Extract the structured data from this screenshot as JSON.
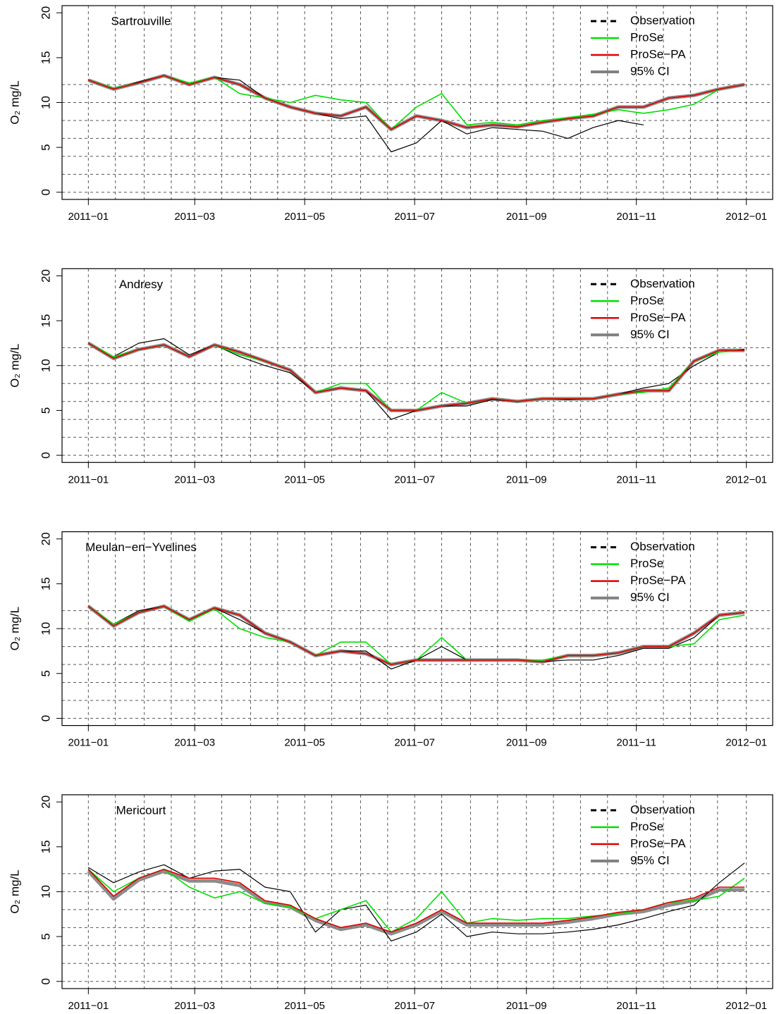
{
  "chart_data": [
    {
      "type": "line",
      "annotation": "Sartrouville",
      "y_label": "O₂ mg/L",
      "x": [
        0,
        14,
        28,
        42,
        56,
        70,
        84,
        98,
        112,
        126,
        140,
        154,
        168,
        182,
        196,
        210,
        224,
        238,
        252,
        266,
        280,
        294,
        308,
        322,
        336,
        350,
        364
      ],
      "xlim": [
        -14.6,
        379.6
      ],
      "xticks": [
        {
          "value": 0,
          "label": "2011−01"
        },
        {
          "value": 59,
          "label": "2011−03"
        },
        {
          "value": 120,
          "label": "2011−05"
        },
        {
          "value": 181,
          "label": "2011−07"
        },
        {
          "value": 243,
          "label": "2011−09"
        },
        {
          "value": 304,
          "label": "2011−11"
        },
        {
          "value": 365,
          "label": "2012−01"
        }
      ],
      "xgrid": [
        0,
        15,
        31,
        46,
        59,
        74,
        90,
        105,
        120,
        135,
        151,
        166,
        181,
        196,
        212,
        227,
        243,
        258,
        273,
        288,
        304,
        319,
        334,
        349,
        365
      ],
      "ylim": [
        -0.8,
        20.8
      ],
      "yticks": [
        0,
        5,
        10,
        15,
        20
      ],
      "ygrid": [
        0,
        2,
        4,
        6,
        8,
        10,
        12
      ],
      "legend": "top right",
      "series": [
        {
          "name": "Observation",
          "color": "#000000",
          "values": [
            12.5,
            11.5,
            12.3,
            13.0,
            12.0,
            12.8,
            12.5,
            10.5,
            9.5,
            8.8,
            8.2,
            8.5,
            4.5,
            5.5,
            8.0,
            6.5,
            7.2,
            7.0,
            6.8,
            6.0,
            7.2,
            8.0,
            7.5,
            null,
            null,
            null,
            null
          ]
        },
        {
          "name": "ProSe",
          "color": "#00e000",
          "values": [
            12.5,
            11.6,
            12.2,
            13.0,
            12.2,
            12.8,
            11.0,
            10.5,
            10.0,
            10.8,
            10.3,
            10.0,
            7.0,
            9.5,
            11.0,
            7.5,
            7.8,
            7.5,
            8.0,
            8.3,
            8.7,
            9.2,
            8.8,
            9.2,
            9.8,
            11.5,
            12.0
          ]
        },
        {
          "name": "ProSe−PA",
          "color": "#e00000",
          "values": [
            12.5,
            11.5,
            12.2,
            13.0,
            12.0,
            12.8,
            12.0,
            10.5,
            9.5,
            8.8,
            8.5,
            9.5,
            7.0,
            8.5,
            8.0,
            7.2,
            7.5,
            7.3,
            7.8,
            8.2,
            8.5,
            9.5,
            9.5,
            10.5,
            10.8,
            11.5,
            12.0
          ]
        },
        {
          "name": "95% CI",
          "color": "#808080",
          "values": [
            12.5,
            11.5,
            12.2,
            13.0,
            12.0,
            12.8,
            12.0,
            10.5,
            9.5,
            8.8,
            8.5,
            9.5,
            7.0,
            8.5,
            8.0,
            7.2,
            7.5,
            7.3,
            7.8,
            8.2,
            8.5,
            9.5,
            9.5,
            10.5,
            10.8,
            11.5,
            12.0
          ]
        }
      ]
    },
    {
      "type": "line",
      "annotation": "Andresy",
      "y_label": "O₂ mg/L",
      "x": [
        0,
        14,
        28,
        42,
        56,
        70,
        84,
        98,
        112,
        126,
        140,
        154,
        168,
        182,
        196,
        210,
        224,
        238,
        252,
        266,
        280,
        294,
        308,
        322,
        336,
        350,
        364
      ],
      "xlim": [
        -14.6,
        379.6
      ],
      "xticks": [
        {
          "value": 0,
          "label": "2011−01"
        },
        {
          "value": 59,
          "label": "2011−03"
        },
        {
          "value": 120,
          "label": "2011−05"
        },
        {
          "value": 181,
          "label": "2011−07"
        },
        {
          "value": 243,
          "label": "2011−09"
        },
        {
          "value": 304,
          "label": "2011−11"
        },
        {
          "value": 365,
          "label": "2012−01"
        }
      ],
      "xgrid": [
        0,
        15,
        31,
        46,
        59,
        74,
        90,
        105,
        120,
        135,
        151,
        166,
        181,
        196,
        212,
        227,
        243,
        258,
        273,
        288,
        304,
        319,
        334,
        349,
        365
      ],
      "ylim": [
        -0.8,
        20.8
      ],
      "yticks": [
        0,
        5,
        10,
        15,
        20
      ],
      "ygrid": [
        0,
        2,
        4,
        6,
        8,
        10,
        12
      ],
      "legend": "top right",
      "series": [
        {
          "name": "Observation",
          "color": "#000000",
          "values": [
            12.5,
            11,
            12.5,
            13,
            11.2,
            12.3,
            11,
            10,
            9.2,
            7,
            7.5,
            7.2,
            4,
            5,
            5.5,
            5.5,
            6.2,
            6,
            6.3,
            6.2,
            6.3,
            6.8,
            7.5,
            8,
            10,
            11.5,
            11.8
          ]
        },
        {
          "name": "ProSe",
          "color": "#00e000",
          "values": [
            12.5,
            11,
            11.8,
            12.3,
            11,
            12.3,
            11.2,
            10.5,
            9.5,
            7,
            8,
            8,
            5,
            5,
            7,
            5.8,
            6.3,
            6,
            6.3,
            6.3,
            6.3,
            6.8,
            7,
            7.5,
            10.5,
            11.5,
            11.7
          ]
        },
        {
          "name": "ProSe−PA",
          "color": "#e00000",
          "values": [
            12.5,
            10.8,
            11.8,
            12.3,
            11,
            12.3,
            11.5,
            10.5,
            9.5,
            7,
            7.5,
            7.2,
            5,
            5,
            5.5,
            5.8,
            6.3,
            6,
            6.3,
            6.3,
            6.3,
            6.8,
            7.2,
            7.2,
            10.5,
            11.7,
            11.7
          ]
        },
        {
          "name": "95% CI",
          "color": "#808080",
          "values": [
            12.5,
            10.8,
            11.8,
            12.3,
            11,
            12.3,
            11.5,
            10.5,
            9.5,
            7,
            7.5,
            7.2,
            5,
            5,
            5.5,
            5.8,
            6.3,
            6,
            6.3,
            6.3,
            6.3,
            6.8,
            7.2,
            7.2,
            10.5,
            11.7,
            11.7
          ]
        }
      ]
    },
    {
      "type": "line",
      "annotation": "Meulan−en−Yvelines",
      "y_label": "O₂ mg/L",
      "x": [
        0,
        14,
        28,
        42,
        56,
        70,
        84,
        98,
        112,
        126,
        140,
        154,
        168,
        182,
        196,
        210,
        224,
        238,
        252,
        266,
        280,
        294,
        308,
        322,
        336,
        350,
        364
      ],
      "xlim": [
        -14.6,
        379.6
      ],
      "xticks": [
        {
          "value": 0,
          "label": "2011−01"
        },
        {
          "value": 59,
          "label": "2011−03"
        },
        {
          "value": 120,
          "label": "2011−05"
        },
        {
          "value": 181,
          "label": "2011−07"
        },
        {
          "value": 243,
          "label": "2011−09"
        },
        {
          "value": 304,
          "label": "2011−11"
        },
        {
          "value": 365,
          "label": "2012−01"
        }
      ],
      "xgrid": [
        0,
        15,
        31,
        46,
        59,
        74,
        90,
        105,
        120,
        135,
        151,
        166,
        181,
        196,
        212,
        227,
        243,
        258,
        273,
        288,
        304,
        319,
        334,
        349,
        365
      ],
      "ylim": [
        -0.8,
        20.8
      ],
      "yticks": [
        0,
        5,
        10,
        15,
        20
      ],
      "ygrid": [
        0,
        2,
        4,
        6,
        8,
        10,
        12
      ],
      "legend": "top right",
      "series": [
        {
          "name": "Observation",
          "color": "#000000",
          "values": [
            12.5,
            10.5,
            12,
            12.5,
            11,
            12.3,
            11,
            9.5,
            8.5,
            7,
            7.5,
            7.5,
            5.5,
            6.5,
            8,
            6.5,
            6.5,
            6.5,
            6.3,
            6.5,
            6.5,
            7,
            7.8,
            7.8,
            9,
            11.5,
            11.8
          ]
        },
        {
          "name": "ProSe",
          "color": "#00e000",
          "values": [
            12.5,
            10.5,
            11.8,
            12.5,
            10.8,
            12.2,
            10,
            9,
            8.5,
            7,
            8.5,
            8.5,
            6,
            6.5,
            9,
            6.5,
            6.5,
            6.5,
            6.5,
            7,
            7,
            7.3,
            8,
            8,
            8.3,
            11,
            11.5
          ]
        },
        {
          "name": "ProSe−PA",
          "color": "#e00000",
          "values": [
            12.5,
            10.3,
            11.8,
            12.5,
            11,
            12.3,
            11.5,
            9.5,
            8.5,
            7,
            7.5,
            7.2,
            6,
            6.5,
            6.5,
            6.5,
            6.5,
            6.5,
            6.3,
            7,
            7,
            7.3,
            8,
            8,
            9.5,
            11.5,
            11.8
          ]
        },
        {
          "name": "95% CI",
          "color": "#808080",
          "values": [
            12.5,
            10.3,
            11.8,
            12.5,
            11,
            12.3,
            11.5,
            9.5,
            8.5,
            7,
            7.5,
            7.2,
            6,
            6.5,
            6.5,
            6.5,
            6.5,
            6.5,
            6.3,
            7,
            7,
            7.3,
            8,
            8,
            9.5,
            11.5,
            11.8
          ]
        }
      ]
    },
    {
      "type": "line",
      "annotation": "Mericourt",
      "y_label": "O₂ mg/L",
      "x": [
        0,
        14,
        28,
        42,
        56,
        70,
        84,
        98,
        112,
        126,
        140,
        154,
        168,
        182,
        196,
        210,
        224,
        238,
        252,
        266,
        280,
        294,
        308,
        322,
        336,
        350,
        364
      ],
      "xlim": [
        -14.6,
        379.6
      ],
      "xticks": [
        {
          "value": 0,
          "label": "2011−01"
        },
        {
          "value": 59,
          "label": "2011−03"
        },
        {
          "value": 120,
          "label": "2011−05"
        },
        {
          "value": 181,
          "label": "2011−07"
        },
        {
          "value": 243,
          "label": "2011−09"
        },
        {
          "value": 304,
          "label": "2011−11"
        },
        {
          "value": 365,
          "label": "2012−01"
        }
      ],
      "xgrid": [
        0,
        15,
        31,
        46,
        59,
        74,
        90,
        105,
        120,
        135,
        151,
        166,
        181,
        196,
        212,
        227,
        243,
        258,
        273,
        288,
        304,
        319,
        334,
        349,
        365
      ],
      "ylim": [
        -0.8,
        20.8
      ],
      "yticks": [
        0,
        5,
        10,
        15,
        20
      ],
      "ygrid": [
        0,
        2,
        4,
        6,
        8,
        10,
        12
      ],
      "legend": "top right",
      "series": [
        {
          "name": "Observation",
          "color": "#000000",
          "values": [
            12.7,
            11,
            12.2,
            13,
            11.5,
            12.3,
            12.5,
            10.5,
            10,
            5.5,
            8,
            8.5,
            4.5,
            5.5,
            7.5,
            5,
            5.5,
            5.3,
            5.3,
            5.5,
            5.8,
            6.3,
            7,
            7.8,
            8.5,
            11,
            13.2
          ]
        },
        {
          "name": "ProSe",
          "color": "#00e000",
          "values": [
            12.5,
            10,
            11.5,
            12.5,
            10.5,
            9.3,
            10,
            8.7,
            8.3,
            7,
            8,
            9,
            5.5,
            7,
            10,
            6.5,
            7,
            6.8,
            7,
            7,
            7.3,
            7.5,
            8,
            8.8,
            9,
            9.5,
            11.5
          ]
        },
        {
          "name": "ProSe−PA",
          "color": "#e00000",
          "values": [
            12.5,
            9.5,
            11.5,
            12.5,
            11.5,
            11.5,
            11,
            9,
            8.5,
            7,
            6,
            6.5,
            5.5,
            6.5,
            8,
            6.5,
            6.5,
            6.5,
            6.5,
            6.8,
            7.2,
            7.7,
            8,
            8.8,
            9.3,
            10.5,
            10.5
          ]
        },
        {
          "name": "95% CI",
          "color": "#808080",
          "values": [
            12.3,
            9.2,
            11.3,
            12.3,
            11.2,
            11.2,
            10.7,
            8.8,
            8.3,
            6.8,
            5.8,
            6.3,
            5.3,
            6.3,
            7.8,
            6.3,
            6.3,
            6.3,
            6.3,
            6.6,
            7,
            7.5,
            7.8,
            8.5,
            9,
            10.2,
            10.2
          ]
        }
      ]
    }
  ]
}
